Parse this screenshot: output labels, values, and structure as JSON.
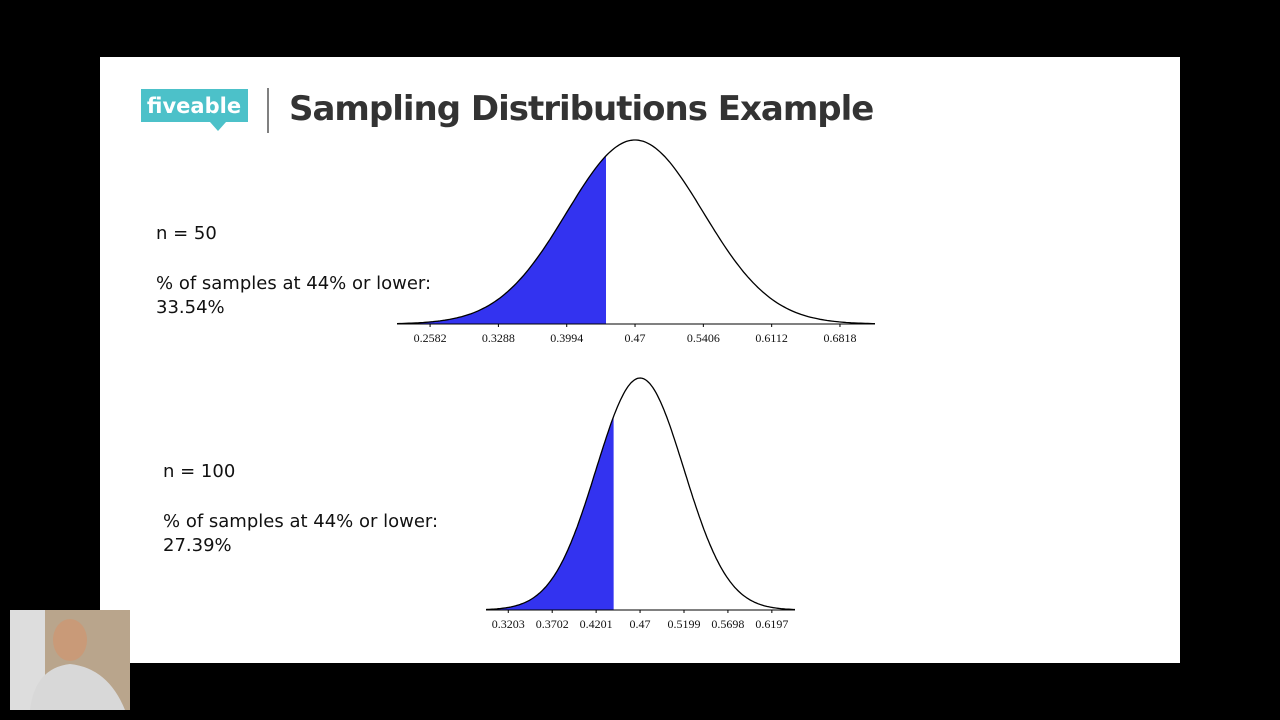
{
  "logo": "fiveable",
  "title": "Sampling Distributions Example",
  "chart_data": [
    {
      "type": "normal",
      "annotations": [
        "n = 50",
        "% of samples at 44% or lower:",
        "33.54%"
      ],
      "shade_to": 0.44,
      "color": "#3333f0",
      "xlim": [
        0.224,
        0.718
      ],
      "xticks": [
        0.2582,
        0.3288,
        0.3994,
        0.47,
        0.5406,
        0.6112,
        0.6818
      ]
    },
    {
      "type": "normal",
      "annotations": [
        "n = 100",
        "% of samples at 44% or lower:",
        "27.39%"
      ],
      "shade_to": 0.44,
      "color": "#3333f0",
      "xlim": [
        0.295,
        0.646
      ],
      "xticks": [
        0.3203,
        0.3702,
        0.4201,
        0.47,
        0.5199,
        0.5698,
        0.6197
      ]
    }
  ]
}
